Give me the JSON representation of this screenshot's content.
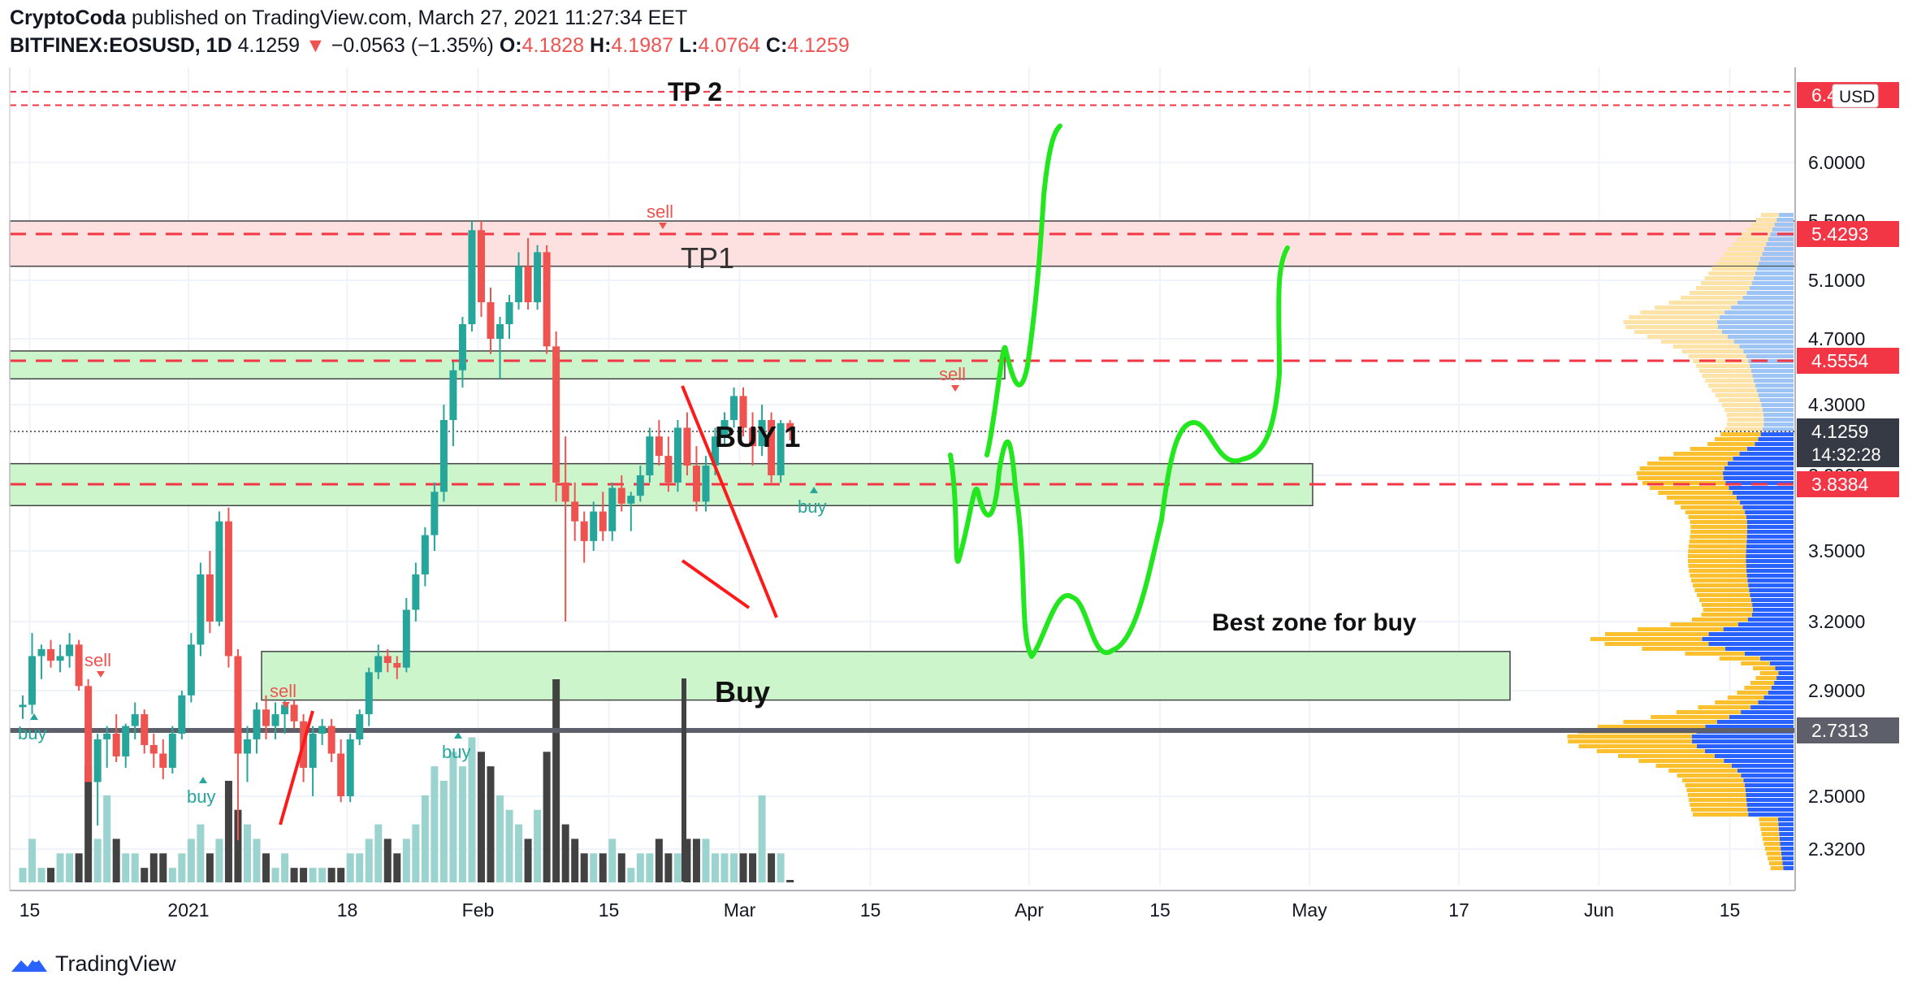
{
  "header": {
    "author": "CryptoCoda",
    "published_text": "published on TradingView.com, March 27, 2021 11:27:34 EET",
    "symbol": "BITFINEX:EOSUSD, 1D",
    "price": "4.1259",
    "change": "−0.0563 (−1.35%)",
    "o_label": "O:",
    "o_val": "4.1828",
    "h_label": "H:",
    "h_val": "4.1987",
    "l_label": "L:",
    "l_val": "4.0764",
    "c_label": "C:",
    "c_val": "4.1259",
    "direction_icon": "triangle-down-icon"
  },
  "brand": {
    "label": "TradingView",
    "icon": "tradingview-logo-icon"
  },
  "chart_data": {
    "type": "candlestick",
    "currency": "USD",
    "y_ticks": [
      {
        "v": 6.0,
        "t": "6.0000"
      },
      {
        "v": 5.5,
        "t": "5.5000"
      },
      {
        "v": 5.1,
        "t": "5.1000"
      },
      {
        "v": 4.7,
        "t": "4.7000"
      },
      {
        "v": 4.3,
        "t": "4.3000"
      },
      {
        "v": 3.9,
        "t": "3.9000"
      },
      {
        "v": 3.5,
        "t": "3.5000"
      },
      {
        "v": 3.2,
        "t": "3.2000"
      },
      {
        "v": 2.9,
        "t": "2.9000"
      },
      {
        "v": 2.5,
        "t": "2.5000"
      },
      {
        "v": 2.32,
        "t": "2.3200"
      }
    ],
    "x_ticks": [
      {
        "d": -17,
        "t": "15"
      },
      {
        "d": 0,
        "t": "2021"
      },
      {
        "d": 17,
        "t": "18"
      },
      {
        "d": 31,
        "t": "Feb"
      },
      {
        "d": 45,
        "t": "15"
      },
      {
        "d": 59,
        "t": "Mar"
      },
      {
        "d": 73,
        "t": "15"
      },
      {
        "d": 90,
        "t": "Apr"
      },
      {
        "d": 104,
        "t": "15"
      },
      {
        "d": 120,
        "t": "May"
      },
      {
        "d": 136,
        "t": "17"
      },
      {
        "d": 151,
        "t": "Jun"
      },
      {
        "d": 165,
        "t": "15"
      }
    ],
    "price_labels": [
      {
        "v": 6.4,
        "t": "6.4",
        "color": "#f23645"
      },
      {
        "v": 5.4293,
        "t": "5.4293",
        "color": "#f23645"
      },
      {
        "v": 4.5554,
        "t": "4.5554",
        "color": "#f23645"
      },
      {
        "v": 4.1259,
        "t": "4.1259",
        "color": "#363a45",
        "sub": "14:32:28"
      },
      {
        "v": 3.8384,
        "t": "3.8384",
        "color": "#f23645"
      },
      {
        "v": 2.7313,
        "t": "2.7313",
        "color": "#5d606b"
      }
    ],
    "candles": [
      [
        2.83,
        2.88,
        2.78,
        2.84
      ],
      [
        2.84,
        3.15,
        2.8,
        3.05
      ],
      [
        3.05,
        3.1,
        2.95,
        3.08
      ],
      [
        3.08,
        3.12,
        3.0,
        3.03
      ],
      [
        3.03,
        3.1,
        2.98,
        3.05
      ],
      [
        3.05,
        3.15,
        3.0,
        3.1
      ],
      [
        3.1,
        3.12,
        2.9,
        2.92
      ],
      [
        2.92,
        2.95,
        2.55,
        2.55
      ],
      [
        2.55,
        2.72,
        2.4,
        2.7
      ],
      [
        2.7,
        2.75,
        2.6,
        2.72
      ],
      [
        2.72,
        2.8,
        2.62,
        2.64
      ],
      [
        2.64,
        2.76,
        2.6,
        2.75
      ],
      [
        2.75,
        2.85,
        2.7,
        2.8
      ],
      [
        2.8,
        2.82,
        2.65,
        2.68
      ],
      [
        2.68,
        2.72,
        2.6,
        2.65
      ],
      [
        2.65,
        2.7,
        2.56,
        2.6
      ],
      [
        2.6,
        2.75,
        2.58,
        2.72
      ],
      [
        2.72,
        2.9,
        2.7,
        2.88
      ],
      [
        2.88,
        3.15,
        2.85,
        3.1
      ],
      [
        3.1,
        3.45,
        3.05,
        3.4
      ],
      [
        3.4,
        3.5,
        3.15,
        3.2
      ],
      [
        3.2,
        3.7,
        3.18,
        3.65
      ],
      [
        3.65,
        3.72,
        3.0,
        3.05
      ],
      [
        3.05,
        3.08,
        2.35,
        2.65
      ],
      [
        2.65,
        2.75,
        2.55,
        2.7
      ],
      [
        2.7,
        2.85,
        2.65,
        2.82
      ],
      [
        2.82,
        2.88,
        2.7,
        2.75
      ],
      [
        2.75,
        2.85,
        2.7,
        2.8
      ],
      [
        2.8,
        2.86,
        2.72,
        2.84
      ],
      [
        2.84,
        2.86,
        2.74,
        2.77
      ],
      [
        2.77,
        2.8,
        2.55,
        2.6
      ],
      [
        2.6,
        2.75,
        2.5,
        2.72
      ],
      [
        2.72,
        2.78,
        2.68,
        2.75
      ],
      [
        2.75,
        2.78,
        2.62,
        2.65
      ],
      [
        2.65,
        2.7,
        2.48,
        2.5
      ],
      [
        2.5,
        2.72,
        2.48,
        2.7
      ],
      [
        2.7,
        2.82,
        2.68,
        2.8
      ],
      [
        2.8,
        3.0,
        2.75,
        2.98
      ],
      [
        2.98,
        3.1,
        2.95,
        3.05
      ],
      [
        3.05,
        3.08,
        2.98,
        3.02
      ],
      [
        3.02,
        3.05,
        2.95,
        3.0
      ],
      [
        3.0,
        3.3,
        2.98,
        3.25
      ],
      [
        3.25,
        3.45,
        3.2,
        3.4
      ],
      [
        3.4,
        3.62,
        3.35,
        3.58
      ],
      [
        3.58,
        3.85,
        3.5,
        3.8
      ],
      [
        3.8,
        4.3,
        3.75,
        4.2
      ],
      [
        4.2,
        4.55,
        4.05,
        4.5
      ],
      [
        4.5,
        4.85,
        4.4,
        4.8
      ],
      [
        4.8,
        5.5,
        4.75,
        5.45
      ],
      [
        5.45,
        5.5,
        4.85,
        4.95
      ],
      [
        4.95,
        5.05,
        4.6,
        4.7
      ],
      [
        4.7,
        4.85,
        4.45,
        4.8
      ],
      [
        4.8,
        5.0,
        4.7,
        4.95
      ],
      [
        4.95,
        5.3,
        4.9,
        5.2
      ],
      [
        5.2,
        5.4,
        4.9,
        4.95
      ],
      [
        4.95,
        5.35,
        4.9,
        5.3
      ],
      [
        5.3,
        5.35,
        4.6,
        4.65
      ],
      [
        4.65,
        4.75,
        3.75,
        3.85
      ],
      [
        3.85,
        4.1,
        3.2,
        3.75
      ],
      [
        3.75,
        3.85,
        3.55,
        3.65
      ],
      [
        3.65,
        3.7,
        3.45,
        3.55
      ],
      [
        3.55,
        3.75,
        3.5,
        3.7
      ],
      [
        3.7,
        3.8,
        3.55,
        3.6
      ],
      [
        3.6,
        3.85,
        3.55,
        3.82
      ],
      [
        3.82,
        3.9,
        3.7,
        3.74
      ],
      [
        3.74,
        3.8,
        3.6,
        3.78
      ],
      [
        3.78,
        3.95,
        3.75,
        3.9
      ],
      [
        3.9,
        4.15,
        3.85,
        4.1
      ],
      [
        4.1,
        4.2,
        3.95,
        4.0
      ],
      [
        4.0,
        4.1,
        3.8,
        3.85
      ],
      [
        3.85,
        4.2,
        3.8,
        4.15
      ],
      [
        4.15,
        4.25,
        3.9,
        3.95
      ],
      [
        3.95,
        4.05,
        3.7,
        3.75
      ],
      [
        3.75,
        4.0,
        3.7,
        3.95
      ],
      [
        3.95,
        4.15,
        3.9,
        4.1
      ],
      [
        4.1,
        4.25,
        4.05,
        4.2
      ],
      [
        4.2,
        4.4,
        4.15,
        4.35
      ],
      [
        4.35,
        4.4,
        4.1,
        4.15
      ],
      [
        4.15,
        4.25,
        3.95,
        4.05
      ],
      [
        4.05,
        4.3,
        4.0,
        4.2
      ],
      [
        4.2,
        4.25,
        3.85,
        3.9
      ],
      [
        3.9,
        4.2,
        3.85,
        4.18
      ],
      [
        4.18,
        4.2,
        4.08,
        4.13
      ]
    ],
    "volumes": [
      1,
      3,
      1,
      1,
      2,
      2,
      2,
      8,
      3,
      6,
      3,
      2,
      2,
      1,
      2,
      2,
      1,
      2,
      3,
      4,
      2,
      3,
      7,
      5,
      4,
      3,
      2,
      1,
      2,
      1,
      1,
      1,
      1,
      1,
      1,
      2,
      2,
      3,
      4,
      3,
      2,
      3,
      4,
      6,
      8,
      7,
      9,
      8,
      10,
      9,
      8,
      6,
      5,
      4,
      3,
      5,
      9,
      14,
      4,
      3,
      2,
      2,
      2,
      3,
      2,
      1,
      2,
      2,
      3,
      2,
      2,
      3,
      3,
      3,
      2,
      2,
      2,
      2,
      2,
      6,
      2,
      2,
      1
    ],
    "last_volume_flat": true
  },
  "annotations": {
    "tp2": "TP 2",
    "tp1": "TP1",
    "buy1": "BUY 1",
    "buy": "Buy",
    "best_zone": "Best zone for buy",
    "signal_sell": "sell",
    "signal_buy": "buy"
  },
  "colors": {
    "up": "#26a69a",
    "down": "#ef5350",
    "vol_up": "#9bd3ce",
    "vol_down": "#424242",
    "zone_green": "#ccf5cc",
    "zone_red": "#fde0e0",
    "level_red": "#f23645",
    "draw_green": "#22e61e",
    "vp_up": "#fbc02d",
    "vp_down": "#2962ff"
  }
}
